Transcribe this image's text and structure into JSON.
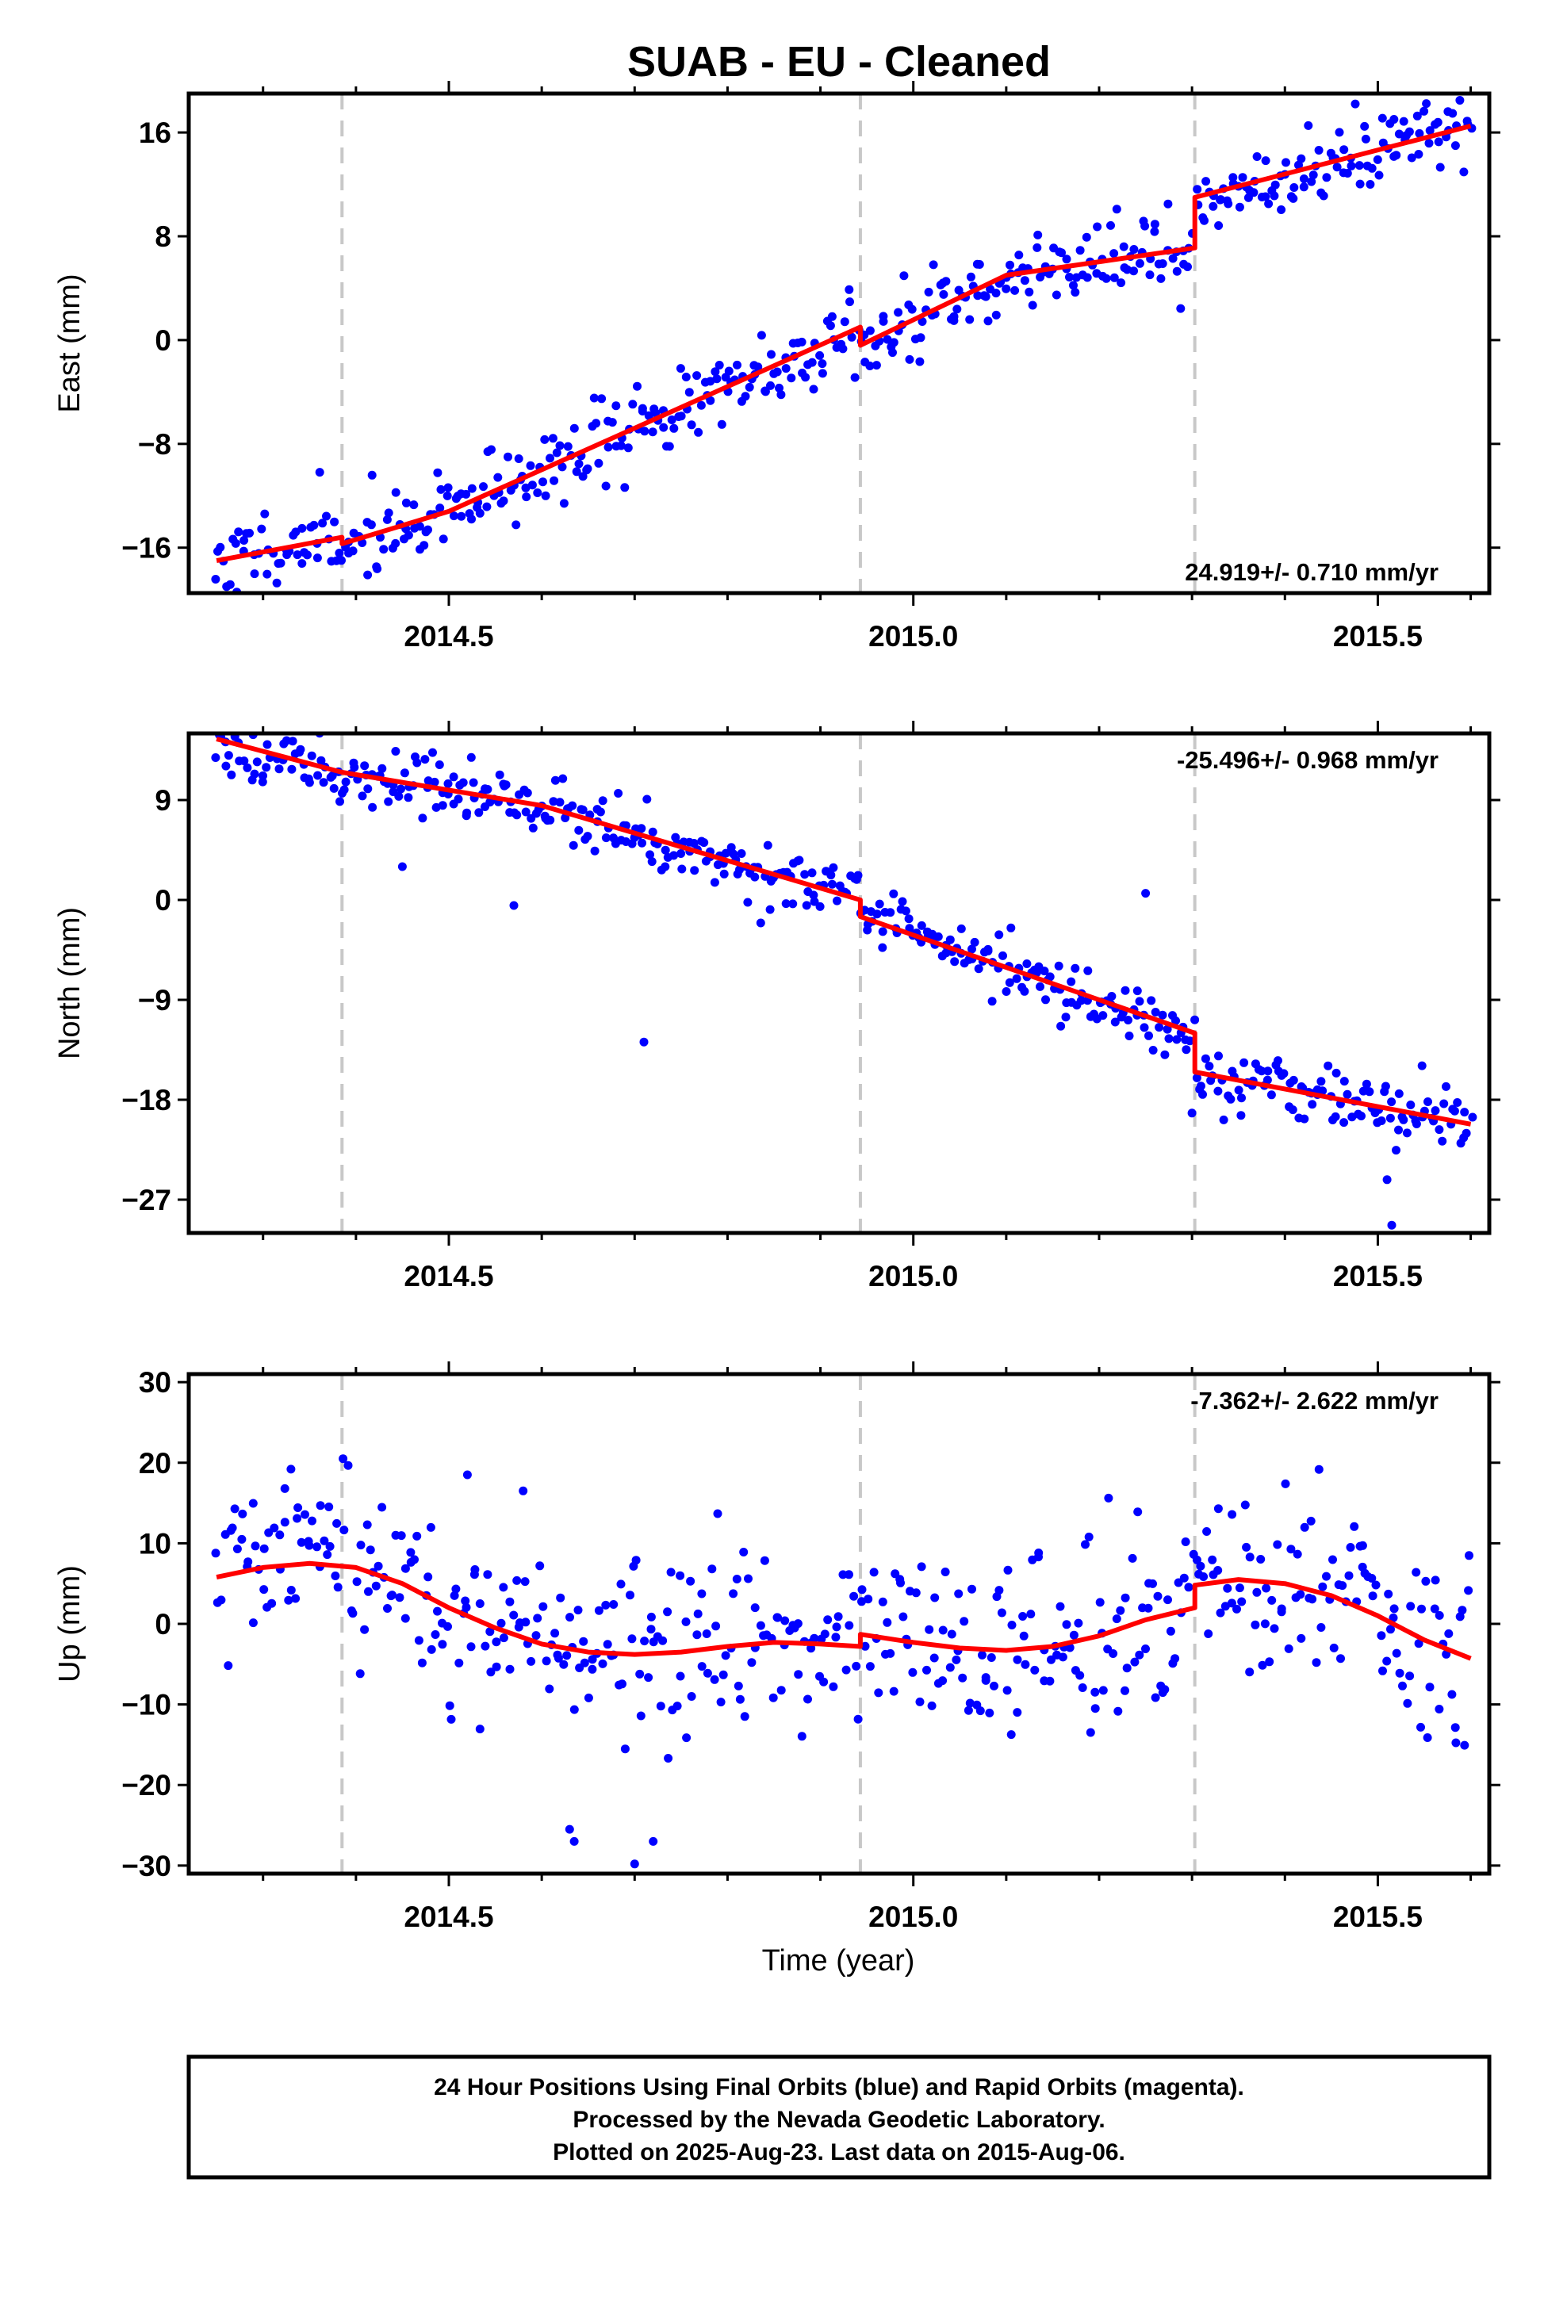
{
  "title": "SUAB  - EU - Cleaned",
  "xlabel": "Time (year)",
  "footer": {
    "line1": "24 Hour Positions Using Final Orbits (blue) and Rapid Orbits (magenta).",
    "line2": "Processed by the Nevada Geodetic Laboratory.",
    "line3": "Plotted on 2025-Aug-23. Last data on 2015-Aug-06."
  },
  "colors": {
    "points": "#0000ff",
    "model": "#ff0000",
    "breaks": "#c8c8c8",
    "axes": "#000000"
  },
  "chart_data": [
    {
      "type": "scatter",
      "ylabel": "East (mm)",
      "rate": "24.919+/- 0.710 mm/yr",
      "xlim": [
        2014.22,
        2015.62
      ],
      "ylim": [
        -19.5,
        19
      ],
      "yticks": [
        -16,
        -8,
        0,
        8,
        16
      ],
      "xticks": [
        2014.5,
        2015.0,
        2015.5
      ],
      "break_lines": [
        2014.385,
        2014.943,
        2015.303
      ],
      "model": [
        [
          2014.25,
          -17
        ],
        [
          2014.385,
          -15.2
        ],
        [
          2014.385,
          -15.7
        ],
        [
          2014.5,
          -13.2
        ],
        [
          2014.943,
          1.0
        ],
        [
          2014.943,
          -0.4
        ],
        [
          2015.1,
          5.0
        ],
        [
          2015.303,
          7.1
        ],
        [
          2015.303,
          11.0
        ],
        [
          2015.6,
          16.5
        ]
      ],
      "series": [
        {
          "name": "Final Orbits",
          "n": 480,
          "scatter": 1.5,
          "seed": 11
        }
      ]
    },
    {
      "type": "scatter",
      "ylabel": "North (mm)",
      "rate": "-25.496+/- 0.968 mm/yr",
      "xlim": [
        2014.22,
        2015.62
      ],
      "ylim": [
        -30,
        15
      ],
      "yticks": [
        -27,
        -18,
        -9,
        0,
        9
      ],
      "xticks": [
        2014.5,
        2015.0,
        2015.5
      ],
      "break_lines": [
        2014.385,
        2014.943,
        2015.303
      ],
      "model": [
        [
          2014.25,
          14.5
        ],
        [
          2014.385,
          11.5
        ],
        [
          2014.6,
          8.5
        ],
        [
          2014.943,
          0.0
        ],
        [
          2014.943,
          -1.5
        ],
        [
          2015.303,
          -12.0
        ],
        [
          2015.303,
          -15.5
        ],
        [
          2015.6,
          -20.2
        ]
      ],
      "outliers": [
        [
          2014.45,
          3.0
        ],
        [
          2014.57,
          -0.5
        ],
        [
          2014.71,
          -12.8
        ],
        [
          2015.25,
          0.6
        ],
        [
          2015.51,
          -25.2
        ],
        [
          2015.515,
          -29.3
        ],
        [
          2015.3,
          -19.2
        ]
      ],
      "series": [
        {
          "name": "Final Orbits",
          "n": 480,
          "scatter": 1.3,
          "seed": 23
        }
      ]
    },
    {
      "type": "scatter",
      "ylabel": "Up (mm)",
      "rate": "-7.362+/- 2.622 mm/yr",
      "xlim": [
        2014.22,
        2015.62
      ],
      "ylim": [
        -31,
        31
      ],
      "yticks": [
        -30,
        -20,
        -10,
        0,
        10,
        20,
        30
      ],
      "xticks": [
        2014.5,
        2015.0,
        2015.5
      ],
      "break_lines": [
        2014.385,
        2014.943,
        2015.303
      ],
      "model": [
        [
          2014.25,
          5.8
        ],
        [
          2014.3,
          7.0
        ],
        [
          2014.35,
          7.5
        ],
        [
          2014.4,
          7.0
        ],
        [
          2014.45,
          5.0
        ],
        [
          2014.5,
          2.0
        ],
        [
          2014.55,
          -0.5
        ],
        [
          2014.6,
          -2.5
        ],
        [
          2014.65,
          -3.5
        ],
        [
          2014.7,
          -3.8
        ],
        [
          2014.75,
          -3.5
        ],
        [
          2014.8,
          -2.8
        ],
        [
          2014.85,
          -2.3
        ],
        [
          2014.9,
          -2.5
        ],
        [
          2014.943,
          -2.8
        ],
        [
          2014.943,
          -1.3
        ],
        [
          2015.0,
          -2.3
        ],
        [
          2015.05,
          -3.0
        ],
        [
          2015.1,
          -3.3
        ],
        [
          2015.15,
          -2.8
        ],
        [
          2015.2,
          -1.5
        ],
        [
          2015.25,
          0.5
        ],
        [
          2015.303,
          2.0
        ],
        [
          2015.303,
          4.8
        ],
        [
          2015.35,
          5.5
        ],
        [
          2015.4,
          5.0
        ],
        [
          2015.45,
          3.5
        ],
        [
          2015.5,
          1.0
        ],
        [
          2015.55,
          -2.0
        ],
        [
          2015.6,
          -4.3
        ]
      ],
      "outliers": [
        [
          2014.63,
          -25.5
        ],
        [
          2014.635,
          -27.0
        ],
        [
          2014.7,
          -29.8
        ],
        [
          2014.72,
          -27.0
        ],
        [
          2014.33,
          19.2
        ],
        [
          2014.52,
          18.5
        ],
        [
          2014.58,
          16.5
        ]
      ],
      "series": [
        {
          "name": "Final Orbits",
          "n": 470,
          "scatter": 5.5,
          "seed": 37
        }
      ]
    }
  ]
}
